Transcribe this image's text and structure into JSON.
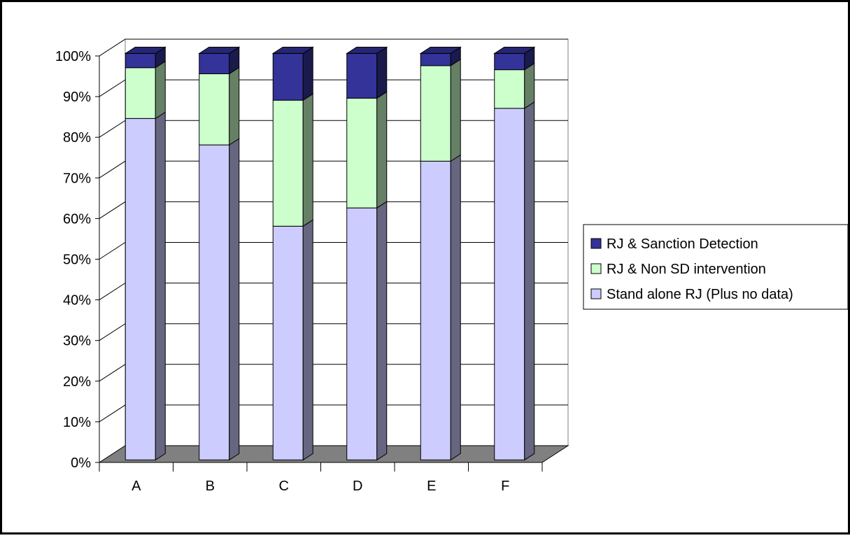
{
  "chart_data": {
    "type": "bar",
    "stacked": true,
    "percent_stacked": true,
    "three_d": true,
    "categories": [
      "A",
      "B",
      "C",
      "D",
      "E",
      "F"
    ],
    "series": [
      {
        "name": "Stand alone RJ (Plus no data)",
        "values": [
          84,
          77.5,
          57.5,
          62,
          73.5,
          86.5
        ],
        "color": "#ccccff"
      },
      {
        "name": "RJ & Non SD intervention",
        "values": [
          12.5,
          17.5,
          31,
          27,
          23.5,
          9.5
        ],
        "color": "#ccffcc"
      },
      {
        "name": "RJ & Sanction Detection",
        "values": [
          3.5,
          5,
          11.5,
          11,
          3,
          4
        ],
        "color": "#333399"
      }
    ],
    "y_ticks": [
      "0%",
      "10%",
      "20%",
      "30%",
      "40%",
      "50%",
      "60%",
      "70%",
      "80%",
      "90%",
      "100%"
    ],
    "ylim": [
      0,
      100
    ],
    "grid": true,
    "legend_position": "right",
    "floor_color": "#808080"
  }
}
